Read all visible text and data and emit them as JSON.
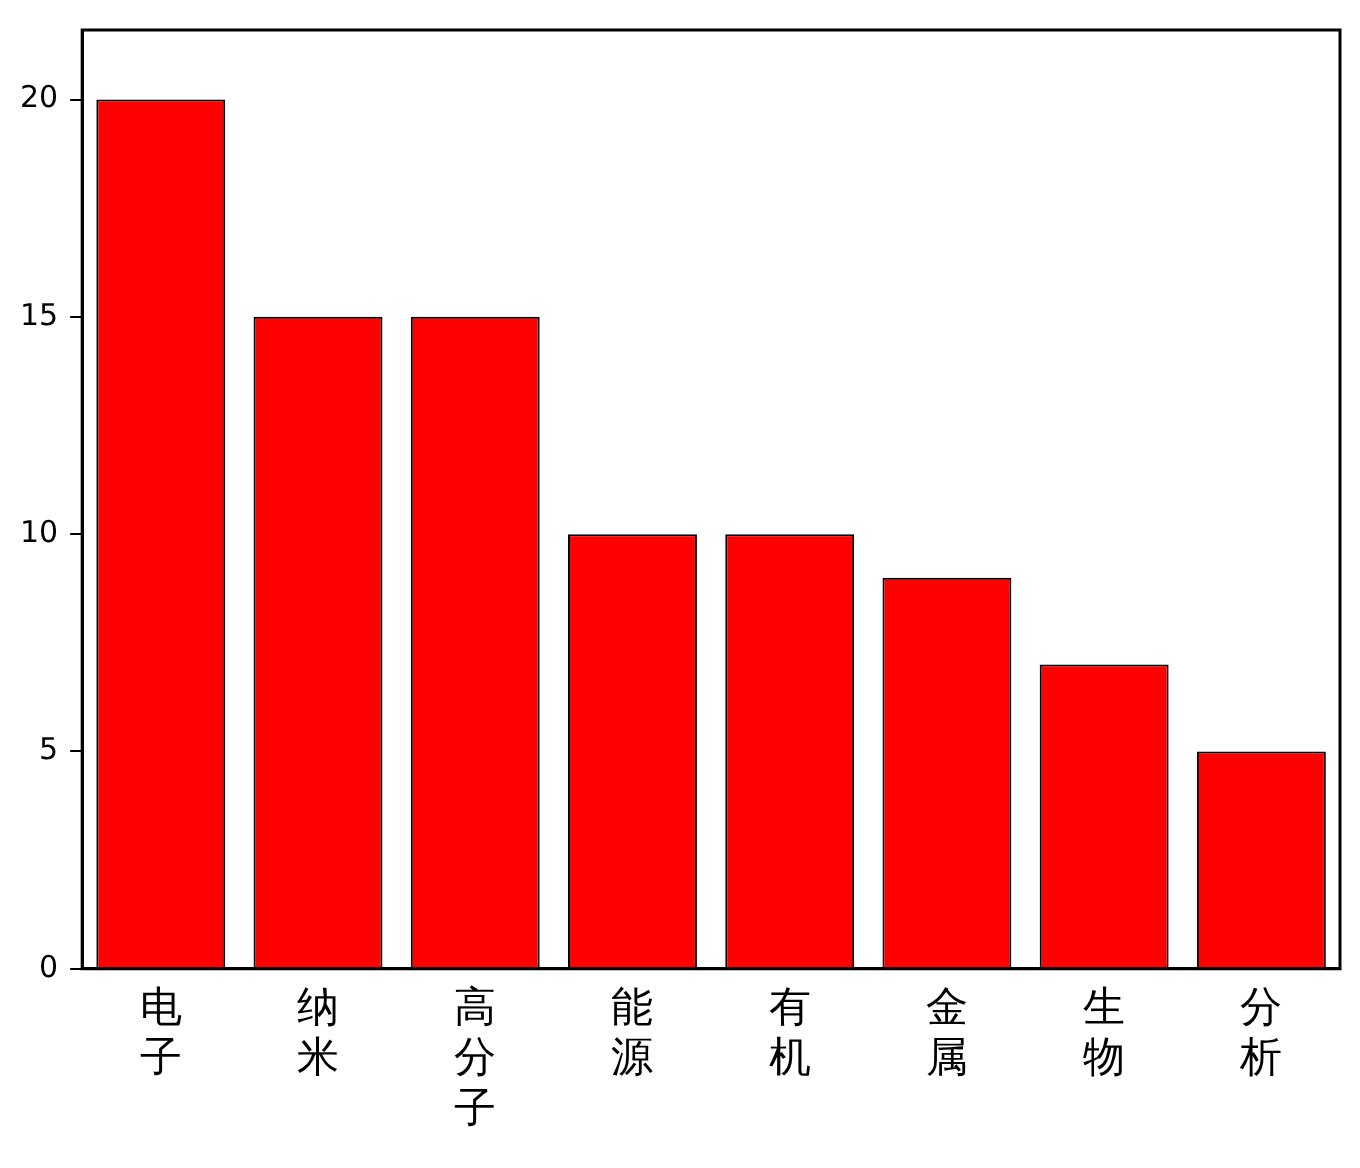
{
  "chart_data": {
    "type": "bar",
    "categories": [
      "电子",
      "纳米",
      "高分子",
      "能源",
      "有机",
      "金属",
      "生物",
      "分析"
    ],
    "values": [
      20,
      15,
      15,
      10,
      10,
      9,
      7,
      5
    ],
    "color": "#ff0000",
    "ylim": [
      0,
      21.6
    ],
    "yticks": [
      0,
      5,
      10,
      15,
      20
    ],
    "grid": false,
    "legend": false
  }
}
